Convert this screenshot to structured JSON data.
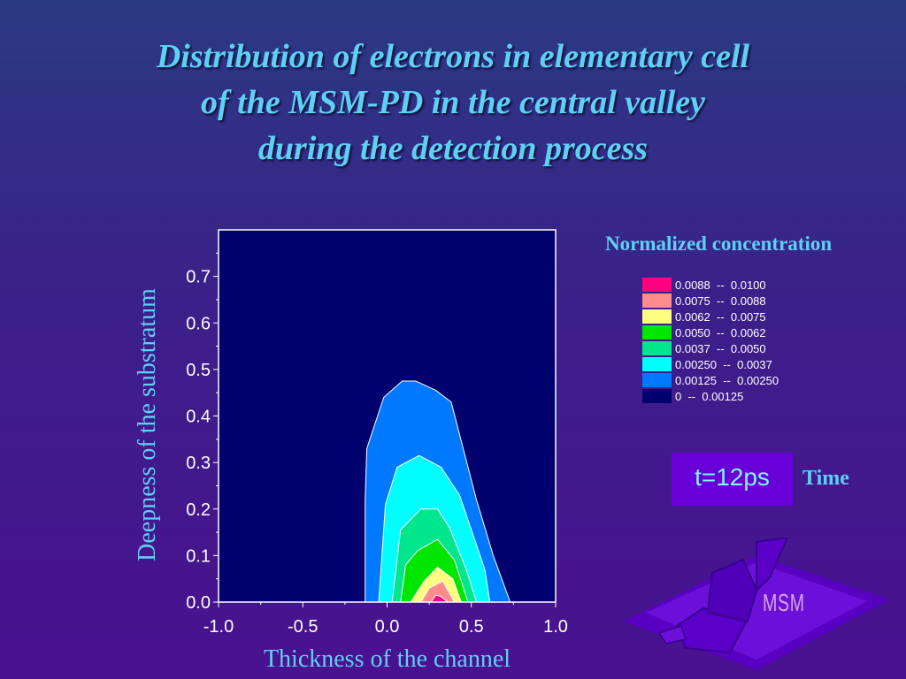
{
  "title_lines": [
    "Distribution of electrons in elementary cell",
    "of the MSM-PD in the central valley",
    "during the detection process"
  ],
  "chart_data": {
    "type": "contour",
    "xlabel": "Thickness of the channel",
    "ylabel": "Deepness of the substratum",
    "xlim": [
      -1.0,
      1.0
    ],
    "ylim": [
      0.0,
      0.8
    ],
    "xticks": [
      "-1.0",
      "-0.5",
      "0.0",
      "0.5",
      "1.0"
    ],
    "yticks": [
      "0.0",
      "0.1",
      "0.2",
      "0.3",
      "0.4",
      "0.5",
      "0.6",
      "0.7"
    ],
    "background_color": "#00006e",
    "levels": [
      {
        "range": "0.00125 -- 0.00250",
        "color": "#0078ff",
        "points": [
          [
            -0.13,
            0
          ],
          [
            -0.13,
            0.22
          ],
          [
            -0.12,
            0.33
          ],
          [
            -0.02,
            0.44
          ],
          [
            0.09,
            0.475
          ],
          [
            0.17,
            0.475
          ],
          [
            0.29,
            0.455
          ],
          [
            0.38,
            0.43
          ],
          [
            0.53,
            0.22
          ],
          [
            0.63,
            0.1
          ],
          [
            0.73,
            0
          ]
        ]
      },
      {
        "range": "0.00250 -- 0.0037",
        "color": "#00ffff",
        "points": [
          [
            -0.05,
            0
          ],
          [
            -0.01,
            0.21
          ],
          [
            0.06,
            0.29
          ],
          [
            0.19,
            0.315
          ],
          [
            0.32,
            0.29
          ],
          [
            0.43,
            0.23
          ],
          [
            0.58,
            0.07
          ],
          [
            0.61,
            0
          ]
        ]
      },
      {
        "range": "0.0037 -- 0.0050",
        "color": "#00e68c",
        "points": [
          [
            0.03,
            0
          ],
          [
            0.08,
            0.155
          ],
          [
            0.2,
            0.2
          ],
          [
            0.3,
            0.2
          ],
          [
            0.37,
            0.16
          ],
          [
            0.47,
            0.07
          ],
          [
            0.53,
            0
          ]
        ]
      },
      {
        "range": "0.0050 -- 0.0062",
        "color": "#00e600",
        "points": [
          [
            0.08,
            0
          ],
          [
            0.11,
            0.08
          ],
          [
            0.18,
            0.11
          ],
          [
            0.3,
            0.135
          ],
          [
            0.4,
            0.09
          ],
          [
            0.48,
            0
          ]
        ]
      },
      {
        "range": "0.0062 -- 0.0075",
        "color": "#ffff80",
        "points": [
          [
            0.14,
            0
          ],
          [
            0.22,
            0.045
          ],
          [
            0.3,
            0.075
          ],
          [
            0.39,
            0.05
          ],
          [
            0.44,
            0
          ]
        ]
      },
      {
        "range": "0.0075 -- 0.0088",
        "color": "#ff8c8c",
        "points": [
          [
            0.2,
            0
          ],
          [
            0.25,
            0.03
          ],
          [
            0.33,
            0.045
          ],
          [
            0.4,
            0
          ]
        ]
      },
      {
        "range": "0.0088 -- 0.0100",
        "color": "#ff0080",
        "points": [
          [
            0.26,
            0
          ],
          [
            0.29,
            0.015
          ],
          [
            0.32,
            0.012
          ],
          [
            0.36,
            0
          ]
        ]
      }
    ]
  },
  "legend": {
    "title": "Normalized concentration",
    "items": [
      {
        "label": "0.0088  --  0.0100",
        "color": "#ff0080"
      },
      {
        "label": "0.0075  --  0.0088",
        "color": "#ff8c8c"
      },
      {
        "label": "0.0062  --  0.0075",
        "color": "#ffff80"
      },
      {
        "label": "0.0050  --  0.0062",
        "color": "#00e600"
      },
      {
        "label": "0.0037  --  0.0050",
        "color": "#00e68c"
      },
      {
        "label": "0.00250  --  0.0037",
        "color": "#00ffff"
      },
      {
        "label": "0.00125  --  0.00250",
        "color": "#0078ff"
      },
      {
        "label": "0  --  0.00125",
        "color": "#00006e"
      }
    ]
  },
  "time": {
    "value": "t=12ps",
    "label": "Time"
  },
  "logo_text": "MSM"
}
